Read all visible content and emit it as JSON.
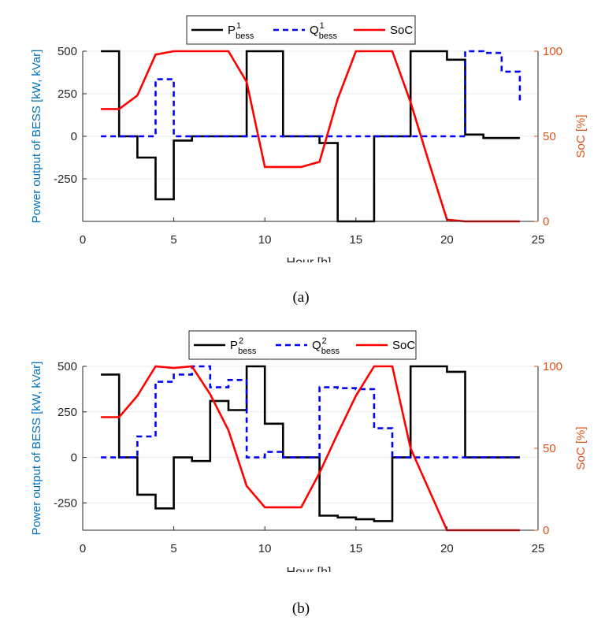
{
  "chart_data": [
    {
      "type": "line",
      "caption": "(a)",
      "xlabel": "Hour [h]",
      "ylabel": "Power output of BESS [kW, kVar]",
      "y2label": "SoC [%]",
      "xlim": [
        0,
        25
      ],
      "ylim": [
        -500,
        500
      ],
      "y2lim": [
        0,
        100
      ],
      "xticks": [
        "0",
        "5",
        "10",
        "15",
        "20",
        "25"
      ],
      "yticks": [
        "500",
        "250",
        "0",
        "-250"
      ],
      "y2ticks": [
        "100",
        "50",
        "0"
      ],
      "legend_location": "top-center",
      "series": [
        {
          "name": "P",
          "sup": "1",
          "sub": "bess",
          "color": "#000000",
          "style": "solid",
          "axis": "left",
          "kind": "step",
          "x": [
            1,
            2,
            3,
            4,
            5,
            6,
            7,
            8,
            9,
            10,
            11,
            12,
            13,
            14,
            15,
            16,
            17,
            18,
            19,
            20,
            21,
            22,
            23,
            24
          ],
          "values": [
            500,
            0,
            -125,
            -370,
            -25,
            0,
            0,
            0,
            500,
            500,
            0,
            0,
            -40,
            -500,
            -500,
            0,
            0,
            500,
            500,
            450,
            10,
            -10,
            -10,
            -10
          ]
        },
        {
          "name": "Q",
          "sup": "1",
          "sub": "bess",
          "color": "#0000ff",
          "style": "dashed",
          "axis": "left",
          "kind": "step",
          "x": [
            1,
            2,
            3,
            4,
            5,
            6,
            7,
            8,
            9,
            10,
            11,
            12,
            13,
            14,
            15,
            16,
            17,
            18,
            19,
            20,
            21,
            22,
            23,
            24
          ],
          "values": [
            0,
            0,
            0,
            335,
            0,
            0,
            0,
            0,
            0,
            0,
            0,
            0,
            0,
            0,
            0,
            0,
            0,
            0,
            0,
            0,
            500,
            490,
            380,
            200
          ]
        },
        {
          "name": "SoC",
          "sup": "",
          "sub": "",
          "color": "#ff0000",
          "style": "solid",
          "axis": "right",
          "kind": "line",
          "x": [
            1,
            2,
            3,
            4,
            5,
            6,
            7,
            8,
            9,
            10,
            11,
            12,
            13,
            14,
            15,
            16,
            17,
            18,
            19,
            20,
            21,
            22,
            23,
            24
          ],
          "values": [
            66,
            66,
            74,
            98,
            100,
            100,
            100,
            100,
            82,
            32,
            32,
            32,
            35,
            72,
            100,
            100,
            100,
            70,
            35,
            1,
            0,
            0,
            0,
            0
          ]
        }
      ]
    },
    {
      "type": "line",
      "caption": "(b)",
      "xlabel": "Hour [h]",
      "ylabel": "Power output of BESS [kW, kVar]",
      "y2label": "SoC [%]",
      "xlim": [
        0,
        25
      ],
      "ylim": [
        -400,
        500
      ],
      "y2lim": [
        0,
        100
      ],
      "xticks": [
        "0",
        "5",
        "10",
        "15",
        "20",
        "25"
      ],
      "yticks": [
        "500",
        "250",
        "0",
        "-250"
      ],
      "y2ticks": [
        "100",
        "50",
        "0"
      ],
      "legend_location": "top-center",
      "series": [
        {
          "name": "P",
          "sup": "2",
          "sub": "bess",
          "color": "#000000",
          "style": "solid",
          "axis": "left",
          "kind": "step",
          "x": [
            1,
            2,
            3,
            4,
            5,
            6,
            7,
            8,
            9,
            10,
            11,
            12,
            13,
            14,
            15,
            16,
            17,
            18,
            19,
            20,
            21,
            22,
            23,
            24
          ],
          "values": [
            455,
            0,
            -205,
            -280,
            0,
            -20,
            310,
            260,
            500,
            185,
            0,
            0,
            -320,
            -330,
            -340,
            -350,
            0,
            500,
            500,
            470,
            0,
            0,
            0,
            0
          ]
        },
        {
          "name": "Q",
          "sup": "2",
          "sub": "bess",
          "color": "#0000ff",
          "style": "dashed",
          "axis": "left",
          "kind": "step",
          "x": [
            1,
            2,
            3,
            4,
            5,
            6,
            7,
            8,
            9,
            10,
            11,
            12,
            13,
            14,
            15,
            16,
            17,
            18,
            19,
            20,
            21,
            22,
            23,
            24
          ],
          "values": [
            0,
            0,
            115,
            415,
            455,
            500,
            385,
            425,
            0,
            30,
            0,
            0,
            385,
            380,
            375,
            160,
            0,
            0,
            0,
            0,
            0,
            0,
            0,
            0
          ]
        },
        {
          "name": "SoC",
          "sup": "",
          "sub": "",
          "color": "#ff0000",
          "style": "solid",
          "axis": "right",
          "kind": "line",
          "x": [
            1,
            2,
            3,
            4,
            5,
            6,
            7,
            8,
            9,
            10,
            11,
            12,
            13,
            14,
            15,
            16,
            17,
            18,
            19,
            20,
            21,
            22,
            23,
            24
          ],
          "values": [
            69,
            69,
            82,
            100,
            99,
            100,
            83,
            61,
            27,
            14,
            14,
            14,
            35,
            59,
            82,
            100,
            100,
            50,
            25,
            0,
            0,
            0,
            0,
            0
          ]
        }
      ]
    }
  ]
}
